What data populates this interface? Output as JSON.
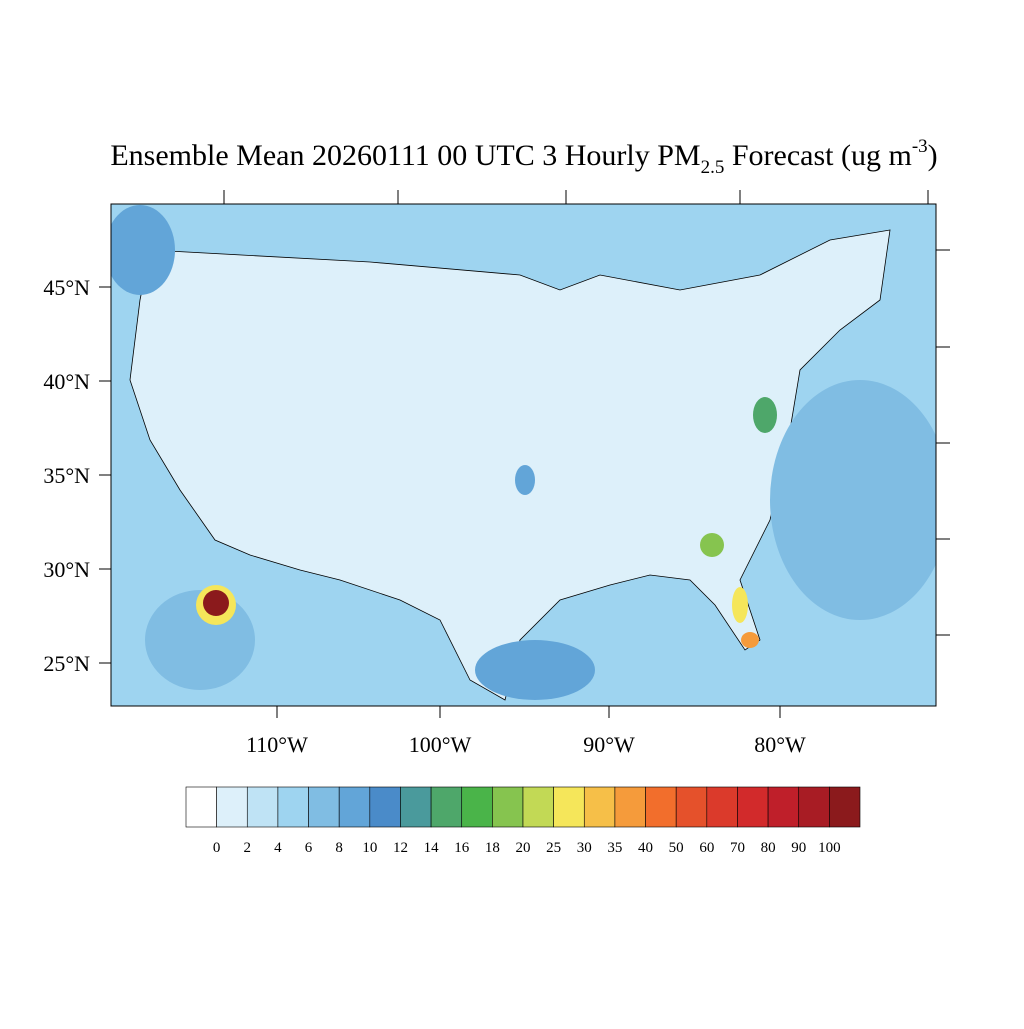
{
  "title": {
    "main": "Ensemble Mean 20260111 00 UTC 3 Hourly PM",
    "subscript": "2.5",
    "middle": " Forecast (ug m",
    "superscript": "-3",
    "end": ")"
  },
  "lat_labels": [
    "45°N",
    "40°N",
    "35°N",
    "30°N",
    "25°N"
  ],
  "lon_labels": [
    "110°W",
    "100°W",
    "90°W",
    "80°W"
  ],
  "colorbar": {
    "levels": [
      0,
      2,
      4,
      6,
      8,
      10,
      12,
      14,
      16,
      18,
      20,
      25,
      30,
      35,
      40,
      50,
      60,
      70,
      80,
      90,
      100
    ],
    "colors": [
      "#ffffff",
      "#ddf0fa",
      "#bfe3f5",
      "#9ed4f0",
      "#80bde3",
      "#62a5d8",
      "#4a8bc9",
      "#4a9a9c",
      "#4ea76a",
      "#4ab449",
      "#86c44f",
      "#c2d955",
      "#f5e65a",
      "#f6bf48",
      "#f59b3b",
      "#f26e2c",
      "#e5512b",
      "#db3a2b",
      "#d22a2b",
      "#bf1f2a",
      "#a81c24",
      "#8b1a1c"
    ]
  }
}
